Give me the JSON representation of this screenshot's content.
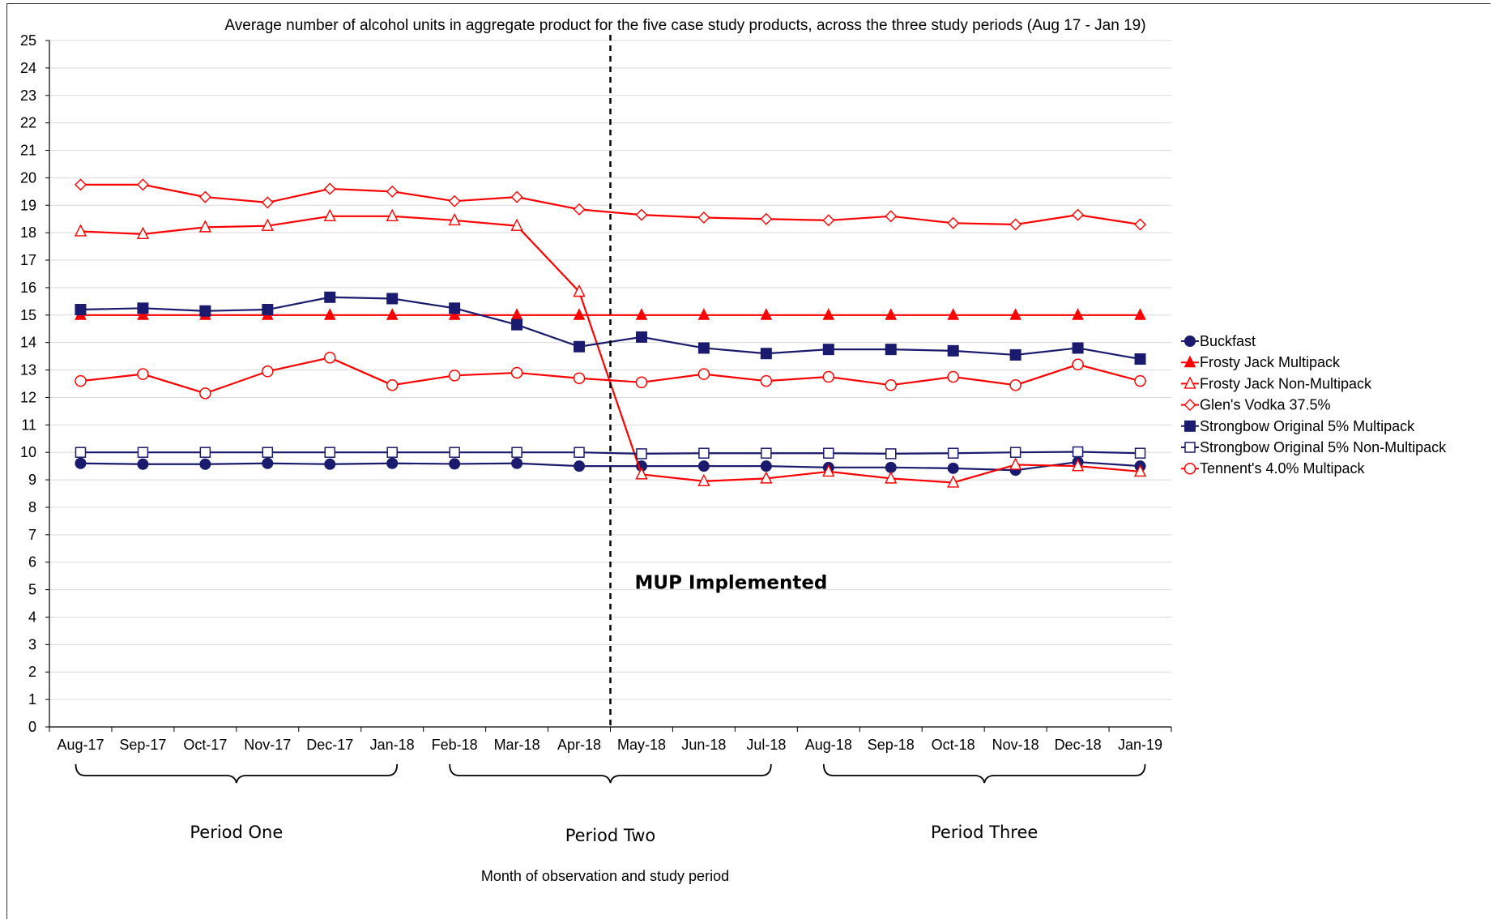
{
  "chart_data": {
    "type": "line",
    "title": "Average number of alcohol units in aggregate product for the five case study products, across the three study periods (Aug 17 - Jan 19)",
    "xlabel": "Month of observation and study period",
    "ylabel": "",
    "ylim": [
      0,
      25
    ],
    "yticks": [
      "0",
      "1",
      "2",
      "3",
      "4",
      "5",
      "6",
      "7",
      "8",
      "9",
      "10",
      "11",
      "12",
      "13",
      "14",
      "15",
      "16",
      "17",
      "18",
      "19",
      "20",
      "21",
      "22",
      "23",
      "24",
      "25"
    ],
    "grid": true,
    "legend_position": "right",
    "categories": [
      "Aug-17",
      "Sep-17",
      "Oct-17",
      "Nov-17",
      "Dec-17",
      "Jan-18",
      "Feb-18",
      "Mar-18",
      "Apr-18",
      "May-18",
      "Jun-18",
      "Jul-18",
      "Aug-18",
      "Sep-18",
      "Oct-18",
      "Nov-18",
      "Dec-18",
      "Jan-19"
    ],
    "series": [
      {
        "name": "Buckfast",
        "color": "#1a1a6e",
        "marker": "circle-filled",
        "values": [
          9.6,
          9.57,
          9.57,
          9.6,
          9.57,
          9.6,
          9.58,
          9.6,
          9.5,
          9.5,
          9.5,
          9.5,
          9.45,
          9.45,
          9.42,
          9.35,
          9.65,
          9.5
        ]
      },
      {
        "name": "Frosty Jack Multipack",
        "color": "#ff0000",
        "marker": "triangle-filled",
        "values": [
          15,
          15,
          15,
          15,
          15,
          15,
          15,
          15,
          15,
          15,
          15,
          15,
          15,
          15,
          15,
          15,
          15,
          15
        ]
      },
      {
        "name": "Frosty Jack Non-Multipack",
        "color": "#ff0000",
        "marker": "triangle-open",
        "values": [
          18.05,
          17.95,
          18.2,
          18.25,
          18.6,
          18.6,
          18.45,
          18.25,
          15.85,
          9.2,
          8.95,
          9.05,
          9.3,
          9.05,
          8.9,
          9.55,
          9.5,
          9.3
        ]
      },
      {
        "name": "Glen's Vodka 37.5%",
        "color": "#ff0000",
        "marker": "diamond-open",
        "values": [
          19.75,
          19.75,
          19.3,
          19.1,
          19.6,
          19.5,
          19.15,
          19.3,
          18.85,
          18.65,
          18.55,
          18.5,
          18.45,
          18.6,
          18.35,
          18.3,
          18.65,
          18.3
        ]
      },
      {
        "name": "Strongbow Original 5% Multipack",
        "color": "#1a1a6e",
        "marker": "square-filled",
        "values": [
          15.2,
          15.25,
          15.15,
          15.2,
          15.65,
          15.6,
          15.25,
          14.65,
          13.85,
          14.2,
          13.8,
          13.6,
          13.75,
          13.75,
          13.7,
          13.55,
          13.8,
          13.4
        ]
      },
      {
        "name": "Strongbow Original 5% Non-Multipack",
        "color": "#1a1a6e",
        "marker": "square-open",
        "values": [
          10,
          10,
          10,
          10,
          10,
          10,
          10,
          10,
          10,
          9.95,
          9.97,
          9.97,
          9.97,
          9.95,
          9.97,
          10,
          10.02,
          9.97
        ]
      },
      {
        "name": "Tennent's 4.0% Multipack",
        "color": "#ff0000",
        "marker": "circle-open",
        "values": [
          12.6,
          12.85,
          12.15,
          12.95,
          13.45,
          12.45,
          12.8,
          12.9,
          12.7,
          12.55,
          12.85,
          12.6,
          12.75,
          12.45,
          12.75,
          12.45,
          13.2,
          12.6
        ]
      }
    ],
    "annotations": [
      {
        "text": "MUP Implemented",
        "position_between": [
          "Apr-18",
          "May-18"
        ],
        "style": "dashed vertical line"
      }
    ],
    "periods": [
      {
        "label": "Period One",
        "from": "Aug-17",
        "to": "Jan-18"
      },
      {
        "label": "Period Two",
        "from": "Feb-18",
        "to": "Jul-18"
      },
      {
        "label": "Period Three",
        "from": "Aug-18",
        "to": "Jan-19"
      }
    ]
  }
}
